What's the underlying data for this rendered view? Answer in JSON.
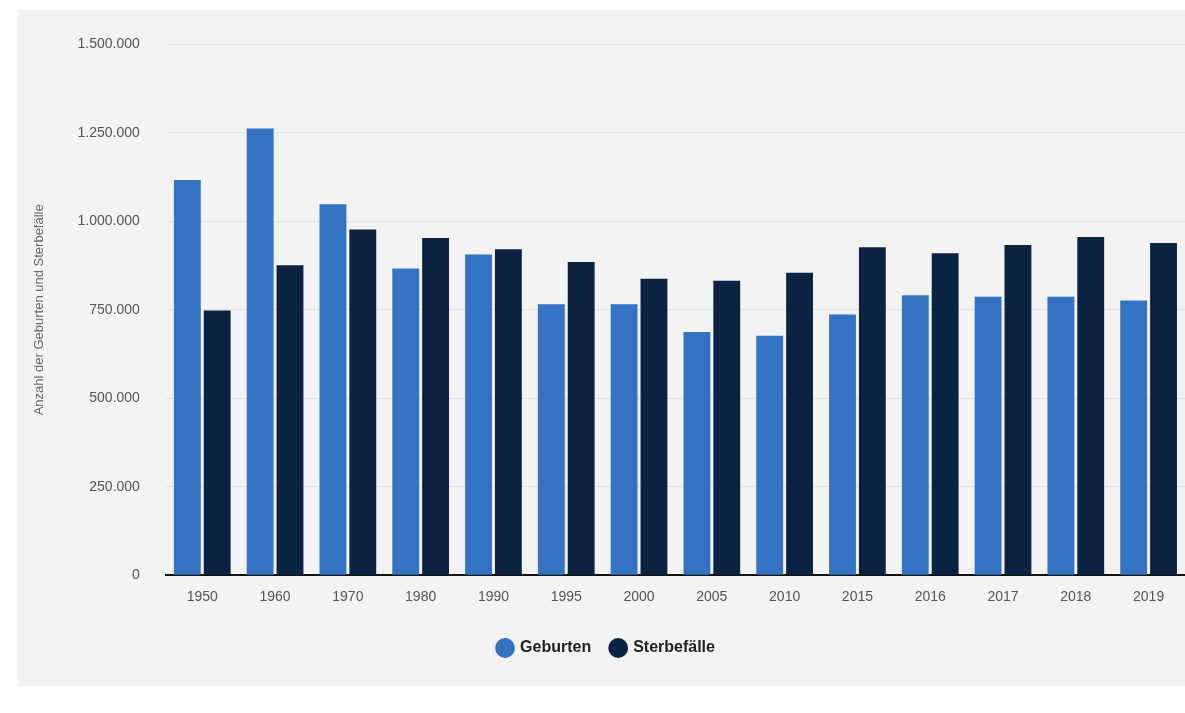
{
  "chart_data": {
    "type": "bar",
    "ylabel": "Anzahl der Geburten und Sterbefälle",
    "categories": [
      "1950",
      "1960",
      "1970",
      "1980",
      "1990",
      "1995",
      "2000",
      "2005",
      "2010",
      "2015",
      "2016",
      "2017",
      "2018",
      "2019"
    ],
    "series": [
      {
        "name": "Geburten",
        "color": "#3473c4",
        "values": [
          1117000,
          1262000,
          1048000,
          867000,
          906000,
          766000,
          766000,
          687000,
          677000,
          737000,
          791000,
          787000,
          787000,
          776000
        ]
      },
      {
        "name": "Sterbefälle",
        "color": "#0b2341",
        "values": [
          748000,
          876000,
          977000,
          953000,
          921000,
          885000,
          838000,
          832000,
          855000,
          927000,
          910000,
          933000,
          956000,
          939000
        ]
      }
    ],
    "ylim": [
      0,
      1500000
    ],
    "yticks": [
      0,
      {
        "value": 250000,
        "label": "250.000"
      },
      {
        "value": 500000,
        "label": "500.000"
      },
      {
        "value": 750000,
        "label": "750.000"
      },
      {
        "value": 1000000,
        "label": "1.000.000"
      },
      {
        "value": 1250000,
        "label": "1.250.000"
      },
      {
        "value": 1500000,
        "label": "1.500.000"
      }
    ],
    "grid": "y",
    "legend": "bottom"
  }
}
